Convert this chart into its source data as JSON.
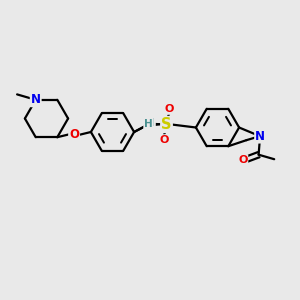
{
  "bg_color": "#e9e9e9",
  "atom_colors": {
    "C": "#000000",
    "N": "#0000ee",
    "O": "#ee0000",
    "S": "#cccc00",
    "H": "#4a9090"
  },
  "bond_color": "#000000",
  "bond_width": 1.6,
  "font_size_atoms": 8.5
}
